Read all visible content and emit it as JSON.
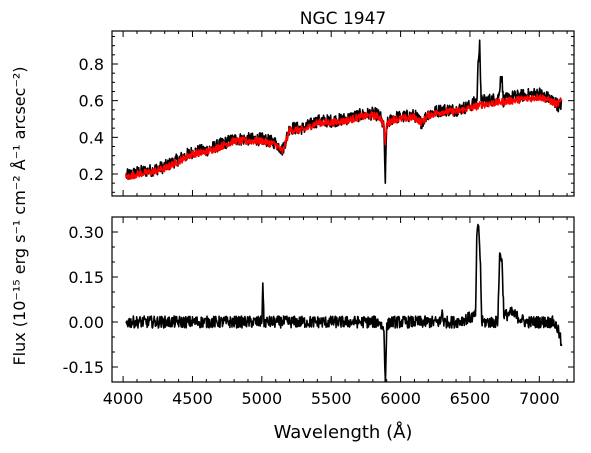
{
  "chart_data": [
    {
      "type": "line",
      "panel": "top",
      "title": "NGC 1947",
      "xlabel": "",
      "ylabel": "",
      "xlim": [
        3920,
        7250
      ],
      "ylim": [
        0.08,
        0.98
      ],
      "x_ticks": [
        4000,
        4500,
        5000,
        5500,
        6000,
        6500,
        7000
      ],
      "y_ticks": [
        0.2,
        0.4,
        0.6,
        0.8
      ],
      "y_tick_labels": [
        "0.2",
        "0.4",
        "0.6",
        "0.8"
      ],
      "x_tick_labels_shown": false,
      "grid": false,
      "legend": "none",
      "series": [
        {
          "color": "#000000",
          "noise": 0.035,
          "x": [
            4020,
            4100,
            4200,
            4300,
            4400,
            4500,
            4600,
            4700,
            4800,
            4900,
            5000,
            5100,
            5150,
            5200,
            5300,
            5400,
            5500,
            5600,
            5700,
            5800,
            5850,
            5880,
            5890,
            5900,
            5950,
            6000,
            6100,
            6150,
            6200,
            6300,
            6400,
            6500,
            6550,
            6560,
            6570,
            6580,
            6600,
            6700,
            6710,
            6720,
            6730,
            6740,
            6800,
            6900,
            7000,
            7050,
            7100,
            7130,
            7150,
            7160
          ],
          "y": [
            0.19,
            0.21,
            0.22,
            0.24,
            0.28,
            0.32,
            0.33,
            0.36,
            0.39,
            0.39,
            0.39,
            0.37,
            0.33,
            0.45,
            0.45,
            0.49,
            0.49,
            0.5,
            0.52,
            0.53,
            0.52,
            0.45,
            0.15,
            0.47,
            0.51,
            0.51,
            0.52,
            0.48,
            0.53,
            0.55,
            0.55,
            0.57,
            0.6,
            0.82,
            0.93,
            0.6,
            0.6,
            0.61,
            0.63,
            0.73,
            0.73,
            0.6,
            0.62,
            0.63,
            0.64,
            0.62,
            0.6,
            0.58,
            0.56,
            0.6
          ]
        },
        {
          "color": "#ff0000",
          "noise": 0.02,
          "x": [
            4020,
            4100,
            4200,
            4300,
            4400,
            4500,
            4600,
            4700,
            4800,
            4900,
            5000,
            5100,
            5150,
            5200,
            5300,
            5400,
            5500,
            5600,
            5700,
            5800,
            5850,
            5880,
            5890,
            5900,
            5950,
            6000,
            6100,
            6150,
            6200,
            6300,
            6400,
            6500,
            6600,
            6700,
            6800,
            6900,
            7000,
            7050,
            7100,
            7130,
            7160
          ],
          "y": [
            0.18,
            0.2,
            0.21,
            0.23,
            0.27,
            0.31,
            0.32,
            0.35,
            0.38,
            0.38,
            0.38,
            0.36,
            0.32,
            0.44,
            0.44,
            0.48,
            0.48,
            0.49,
            0.51,
            0.52,
            0.51,
            0.47,
            0.36,
            0.47,
            0.5,
            0.5,
            0.51,
            0.48,
            0.52,
            0.54,
            0.54,
            0.56,
            0.58,
            0.59,
            0.6,
            0.61,
            0.62,
            0.61,
            0.59,
            0.58,
            0.6
          ]
        }
      ]
    },
    {
      "type": "line",
      "panel": "bottom",
      "xlabel": "Wavelength (Å)",
      "ylabel": "",
      "xlim": [
        3920,
        7250
      ],
      "ylim": [
        -0.2,
        0.35
      ],
      "x_ticks": [
        4000,
        4500,
        5000,
        5500,
        6000,
        6500,
        7000
      ],
      "x_tick_labels": [
        "4000",
        "4500",
        "5000",
        "5500",
        "6000",
        "6500",
        "7000"
      ],
      "y_ticks": [
        -0.15,
        0.0,
        0.15,
        0.3
      ],
      "y_tick_labels": [
        "-0.15",
        "0.00",
        "0.15",
        "0.30"
      ],
      "grid": false,
      "legend": "none",
      "series": [
        {
          "color": "#000000",
          "noise": 0.02,
          "x": [
            4020,
            4300,
            4600,
            4900,
            5000,
            5007,
            5015,
            5100,
            5300,
            5500,
            5700,
            5850,
            5880,
            5890,
            5900,
            5920,
            6000,
            6200,
            6290,
            6300,
            6310,
            6400,
            6540,
            6550,
            6563,
            6575,
            6585,
            6600,
            6700,
            6715,
            6730,
            6745,
            6800,
            6900,
            7000,
            7100,
            7130,
            7150,
            7160
          ],
          "y": [
            0.0,
            0.0,
            0.0,
            0.0,
            0.0,
            0.13,
            0.0,
            0.0,
            0.0,
            0.0,
            0.0,
            0.0,
            -0.03,
            -0.2,
            -0.02,
            0.0,
            0.0,
            0.0,
            0.0,
            0.04,
            0.0,
            0.0,
            0.02,
            0.29,
            0.32,
            0.2,
            0.0,
            0.0,
            0.0,
            0.23,
            0.21,
            0.02,
            0.03,
            0.0,
            0.0,
            0.0,
            -0.02,
            -0.05,
            -0.08
          ]
        }
      ]
    }
  ],
  "shared_ylabel": "Flux (10⁻¹⁵ erg s⁻¹ cm⁻² Å⁻¹ arcsec⁻²)"
}
